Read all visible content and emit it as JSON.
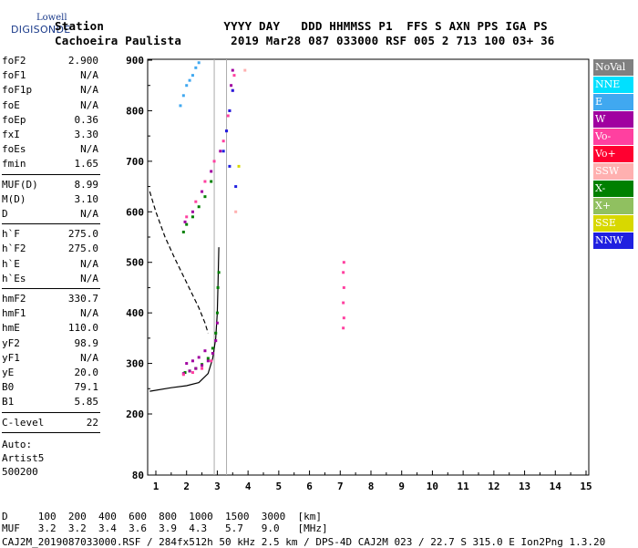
{
  "logo": {
    "line1": "Lowell",
    "line2": "DIGISONDE"
  },
  "header": {
    "row1": "Station                 YYYY DAY   DDD HHMMSS P1  FFS S AXN PPS IGA PS",
    "row2": "Cachoeira Paulista       2019 Mar28 087 033000 RSF 005 2 713 100 03+ 36"
  },
  "params": {
    "group1": [
      {
        "label": "foF2",
        "value": "2.900"
      },
      {
        "label": "foF1",
        "value": "N/A"
      },
      {
        "label": "foF1p",
        "value": "N/A"
      },
      {
        "label": "foE",
        "value": "N/A"
      },
      {
        "label": "foEp",
        "value": "0.36"
      },
      {
        "label": "fxI",
        "value": "3.30"
      },
      {
        "label": "foEs",
        "value": "N/A"
      },
      {
        "label": "fmin",
        "value": "1.65"
      }
    ],
    "group2": [
      {
        "label": "MUF(D)",
        "value": "8.99"
      },
      {
        "label": "M(D)",
        "value": "3.10"
      },
      {
        "label": "D",
        "value": "N/A"
      }
    ],
    "group3": [
      {
        "label": "h`F",
        "value": "275.0"
      },
      {
        "label": "h`F2",
        "value": "275.0"
      },
      {
        "label": "h`E",
        "value": "N/A"
      },
      {
        "label": "h`Es",
        "value": "N/A"
      }
    ],
    "group4": [
      {
        "label": "hmF2",
        "value": "330.7"
      },
      {
        "label": "hmF1",
        "value": "N/A"
      },
      {
        "label": "hmE",
        "value": "110.0"
      },
      {
        "label": "yF2",
        "value": "98.9"
      },
      {
        "label": "yF1",
        "value": "N/A"
      },
      {
        "label": "yE",
        "value": "20.0"
      },
      {
        "label": "B0",
        "value": "79.1"
      },
      {
        "label": "B1",
        "value": "5.85"
      }
    ],
    "group5": [
      {
        "label": "C-level",
        "value": "22"
      }
    ],
    "auto": [
      "Auto:",
      "Artist5",
      "500200"
    ]
  },
  "legend": [
    {
      "label": "NoVal",
      "color": "#808080"
    },
    {
      "label": "NNE",
      "color": "#00e0ff"
    },
    {
      "label": "E",
      "color": "#40a8f0"
    },
    {
      "label": "W",
      "color": "#a000a0"
    },
    {
      "label": "Vo-",
      "color": "#ff40a0"
    },
    {
      "label": "Vo+",
      "color": "#ff0030"
    },
    {
      "label": "SSW",
      "color": "#ffb0b0"
    },
    {
      "label": "X-",
      "color": "#008000"
    },
    {
      "label": "X+",
      "color": "#90c060"
    },
    {
      "label": "SSE",
      "color": "#d8d800"
    },
    {
      "label": "NNW",
      "color": "#2020e0"
    }
  ],
  "footer": {
    "row1": "D     100  200  400  600  800  1000  1500  3000  [km]",
    "row2": "MUF   3.2  3.2  3.4  3.6  3.9  4.3   5.7   9.0   [MHz]",
    "row3": "CAJ2M_2019087033000.RSF / 284fx512h 50 kHz 2.5 km / DPS-4D CAJ2M 023 / 22.7 S 315.0 E Ion2Png 1.3.20"
  },
  "chart_data": {
    "type": "scatter",
    "xlim": [
      0.8,
      15
    ],
    "ylim": [
      80,
      900
    ],
    "xticks": [
      1,
      2,
      3,
      4,
      5,
      6,
      7,
      8,
      9,
      10,
      11,
      12,
      13,
      14,
      15
    ],
    "yticks": [
      80,
      200,
      300,
      400,
      500,
      600,
      700,
      800,
      900
    ],
    "grid": false,
    "legend_position": "right",
    "reference_x": [
      2.9,
      3.3
    ],
    "series": [
      {
        "name": "X-",
        "color": "#008000",
        "points": [
          [
            1.95,
            282
          ],
          [
            2.1,
            285
          ],
          [
            2.3,
            290
          ],
          [
            2.5,
            298
          ],
          [
            2.7,
            310
          ],
          [
            2.85,
            330
          ],
          [
            2.95,
            360
          ],
          [
            3.0,
            400
          ],
          [
            3.02,
            450
          ],
          [
            3.05,
            480
          ],
          [
            1.9,
            560
          ],
          [
            2.0,
            575
          ],
          [
            2.2,
            590
          ],
          [
            2.4,
            610
          ],
          [
            2.6,
            630
          ],
          [
            2.8,
            660
          ]
        ]
      },
      {
        "name": "W",
        "color": "#a000a0",
        "points": [
          [
            1.9,
            280
          ],
          [
            2.1,
            285
          ],
          [
            2.3,
            290
          ],
          [
            2.5,
            296
          ],
          [
            2.7,
            305
          ],
          [
            2.85,
            320
          ],
          [
            2.95,
            345
          ],
          [
            3.0,
            380
          ],
          [
            2.0,
            300
          ],
          [
            2.2,
            305
          ],
          [
            2.4,
            312
          ],
          [
            2.6,
            325
          ],
          [
            1.95,
            580
          ],
          [
            2.2,
            600
          ],
          [
            2.5,
            640
          ],
          [
            2.8,
            680
          ],
          [
            3.1,
            720
          ],
          [
            3.3,
            760
          ],
          [
            3.4,
            800
          ],
          [
            3.45,
            850
          ],
          [
            3.5,
            880
          ]
        ]
      },
      {
        "name": "Vo-",
        "color": "#ff40a0",
        "points": [
          [
            1.9,
            278
          ],
          [
            2.2,
            282
          ],
          [
            2.5,
            290
          ],
          [
            2.8,
            305
          ],
          [
            2.0,
            590
          ],
          [
            2.3,
            620
          ],
          [
            2.6,
            660
          ],
          [
            2.9,
            700
          ],
          [
            3.2,
            740
          ],
          [
            3.35,
            790
          ],
          [
            3.5,
            840
          ],
          [
            3.55,
            870
          ],
          [
            7.1,
            370
          ],
          [
            7.12,
            390
          ],
          [
            7.1,
            420
          ],
          [
            7.12,
            450
          ],
          [
            7.1,
            480
          ],
          [
            7.12,
            500
          ]
        ]
      },
      {
        "name": "E",
        "color": "#40a8f0",
        "points": [
          [
            1.8,
            810
          ],
          [
            1.9,
            830
          ],
          [
            2.0,
            850
          ],
          [
            2.1,
            860
          ],
          [
            2.2,
            870
          ],
          [
            2.3,
            885
          ],
          [
            2.4,
            895
          ]
        ]
      },
      {
        "name": "NNW",
        "color": "#2020e0",
        "points": [
          [
            3.2,
            720
          ],
          [
            3.3,
            760
          ],
          [
            3.4,
            800
          ],
          [
            3.5,
            840
          ],
          [
            3.6,
            650
          ],
          [
            3.4,
            690
          ]
        ]
      },
      {
        "name": "SSE",
        "color": "#d8d800",
        "points": [
          [
            3.7,
            690
          ]
        ]
      },
      {
        "name": "SSW",
        "color": "#ffb0b0",
        "points": [
          [
            3.9,
            880
          ],
          [
            3.6,
            600
          ]
        ]
      }
    ],
    "curves": [
      {
        "color": "#000000",
        "style": "solid",
        "points": [
          [
            0.8,
            245
          ],
          [
            1.5,
            252
          ],
          [
            2.0,
            256
          ],
          [
            2.4,
            262
          ],
          [
            2.7,
            280
          ],
          [
            2.85,
            310
          ],
          [
            2.95,
            350
          ],
          [
            3.0,
            400
          ],
          [
            3.02,
            450
          ],
          [
            3.05,
            530
          ]
        ]
      },
      {
        "color": "#000000",
        "style": "dashed",
        "points": [
          [
            0.8,
            640
          ],
          [
            1.0,
            600
          ],
          [
            1.3,
            550
          ],
          [
            1.6,
            510
          ],
          [
            2.0,
            460
          ],
          [
            2.4,
            410
          ],
          [
            2.6,
            380
          ],
          [
            2.7,
            360
          ]
        ]
      }
    ]
  }
}
